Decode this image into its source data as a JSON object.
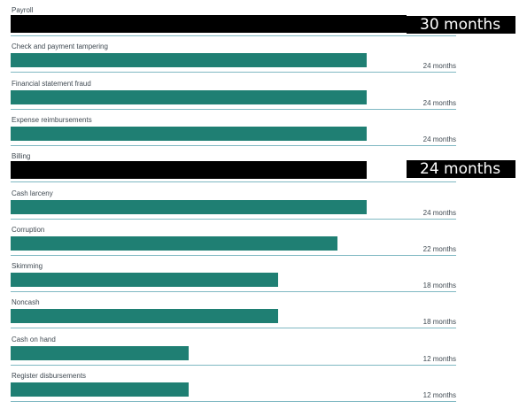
{
  "chart_data": {
    "type": "bar",
    "orientation": "horizontal",
    "categories": [
      "Payroll",
      "Check and payment tampering",
      "Financial statement fraud",
      "Expense reimbursements",
      "Billing",
      "Cash larceny",
      "Corruption",
      "Skimming",
      "Noncash",
      "Cash on hand",
      "Register disbursements"
    ],
    "values": [
      30,
      24,
      24,
      24,
      24,
      24,
      22,
      18,
      18,
      12,
      12
    ],
    "value_labels": [
      "30 months",
      "24 months",
      "24 months",
      "24 months",
      "24 months",
      "24 months",
      "22 months",
      "18 months",
      "18 months",
      "12 months",
      "12 months"
    ],
    "xlim": [
      0,
      30
    ],
    "grid": false,
    "colors": {
      "bar": "#1f7f73",
      "highlight": "#000000",
      "track": "#7fb8c2"
    },
    "highlighted": [
      "Payroll",
      "Billing"
    ]
  }
}
